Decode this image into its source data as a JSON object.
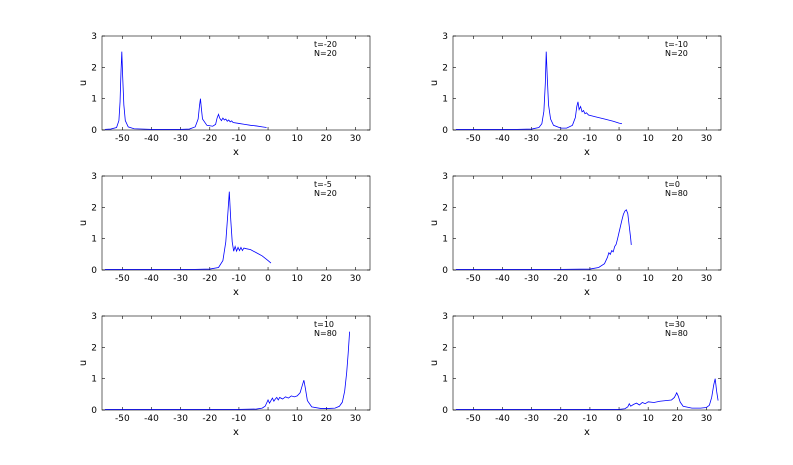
{
  "chart_data": [
    {
      "type": "line",
      "xlabel": "x",
      "ylabel": "u",
      "xlim": [
        -57,
        35
      ],
      "ylim": [
        0,
        3
      ],
      "xticks": [
        -50,
        -40,
        -30,
        -20,
        -10,
        0,
        10,
        20,
        30
      ],
      "yticks": [
        0,
        1,
        2,
        3
      ],
      "annotations": [
        "t=-20",
        "N=20"
      ],
      "series": [
        {
          "color": "#0000ff",
          "points": [
            [
              -56,
              0.02
            ],
            [
              -54,
              0.03
            ],
            [
              -52,
              0.08
            ],
            [
              -51.2,
              0.3
            ],
            [
              -50.8,
              0.9
            ],
            [
              -50.5,
              1.8
            ],
            [
              -50.2,
              2.5
            ],
            [
              -49.9,
              1.7
            ],
            [
              -49.5,
              0.8
            ],
            [
              -49,
              0.3
            ],
            [
              -48,
              0.1
            ],
            [
              -46,
              0.04
            ],
            [
              -40,
              0.02
            ],
            [
              -30,
              0.02
            ],
            [
              -27,
              0.03
            ],
            [
              -25,
              0.1
            ],
            [
              -24,
              0.35
            ],
            [
              -23.5,
              0.8
            ],
            [
              -23.2,
              1.0
            ],
            [
              -22.9,
              0.7
            ],
            [
              -22.5,
              0.35
            ],
            [
              -21,
              0.15
            ],
            [
              -19,
              0.12
            ],
            [
              -18,
              0.18
            ],
            [
              -17.5,
              0.38
            ],
            [
              -17,
              0.5
            ],
            [
              -16.6,
              0.38
            ],
            [
              -16,
              0.3
            ],
            [
              -15.5,
              0.38
            ],
            [
              -15,
              0.32
            ],
            [
              -14.5,
              0.35
            ],
            [
              -14,
              0.28
            ],
            [
              -13.5,
              0.32
            ],
            [
              -13,
              0.26
            ],
            [
              -12.5,
              0.29
            ],
            [
              -12,
              0.24
            ],
            [
              -10,
              0.21
            ],
            [
              -8,
              0.18
            ],
            [
              -6,
              0.15
            ],
            [
              -4,
              0.13
            ],
            [
              -2,
              0.1
            ],
            [
              -0.5,
              0.08
            ]
          ]
        }
      ]
    },
    {
      "type": "line",
      "xlabel": "x",
      "ylabel": "u",
      "xlim": [
        -57,
        35
      ],
      "ylim": [
        0,
        3
      ],
      "xticks": [
        -50,
        -40,
        -30,
        -20,
        -10,
        0,
        10,
        20,
        30
      ],
      "yticks": [
        0,
        1,
        2,
        3
      ],
      "annotations": [
        "t=-10",
        "N=20"
      ],
      "series": [
        {
          "color": "#0000ff",
          "points": [
            [
              -56,
              0.02
            ],
            [
              -45,
              0.02
            ],
            [
              -35,
              0.02
            ],
            [
              -30,
              0.03
            ],
            [
              -27.5,
              0.08
            ],
            [
              -26.5,
              0.2
            ],
            [
              -25.8,
              0.6
            ],
            [
              -25.3,
              1.5
            ],
            [
              -25,
              2.5
            ],
            [
              -24.6,
              1.6
            ],
            [
              -24.2,
              0.8
            ],
            [
              -23.5,
              0.35
            ],
            [
              -22.5,
              0.15
            ],
            [
              -20,
              0.06
            ],
            [
              -18,
              0.06
            ],
            [
              -16,
              0.15
            ],
            [
              -15,
              0.4
            ],
            [
              -14.5,
              0.75
            ],
            [
              -14.1,
              0.9
            ],
            [
              -13.7,
              0.65
            ],
            [
              -13.2,
              0.75
            ],
            [
              -12.7,
              0.58
            ],
            [
              -12.2,
              0.62
            ],
            [
              -11.7,
              0.52
            ],
            [
              -11.2,
              0.55
            ],
            [
              -10.5,
              0.48
            ],
            [
              -8,
              0.42
            ],
            [
              -5,
              0.35
            ],
            [
              -2,
              0.28
            ],
            [
              0,
              0.22
            ],
            [
              1,
              0.2
            ]
          ]
        }
      ]
    },
    {
      "type": "line",
      "xlabel": "x",
      "ylabel": "u",
      "xlim": [
        -57,
        35
      ],
      "ylim": [
        0,
        3
      ],
      "xticks": [
        -50,
        -40,
        -30,
        -20,
        -10,
        0,
        10,
        20,
        30
      ],
      "yticks": [
        0,
        1,
        2,
        3
      ],
      "annotations": [
        "t=-5",
        "N=20"
      ],
      "series": [
        {
          "color": "#0000ff",
          "points": [
            [
              -56,
              0.02
            ],
            [
              -40,
              0.02
            ],
            [
              -25,
              0.02
            ],
            [
              -20,
              0.03
            ],
            [
              -17,
              0.08
            ],
            [
              -15.5,
              0.3
            ],
            [
              -14.5,
              0.9
            ],
            [
              -13.8,
              1.8
            ],
            [
              -13.3,
              2.5
            ],
            [
              -12.8,
              1.6
            ],
            [
              -12.3,
              0.9
            ],
            [
              -11.8,
              0.6
            ],
            [
              -11.3,
              0.75
            ],
            [
              -10.8,
              0.6
            ],
            [
              -10.3,
              0.72
            ],
            [
              -9.8,
              0.62
            ],
            [
              -9.3,
              0.72
            ],
            [
              -8.8,
              0.62
            ],
            [
              -8.3,
              0.7
            ],
            [
              -7.5,
              0.68
            ],
            [
              -6,
              0.65
            ],
            [
              -4,
              0.55
            ],
            [
              -2,
              0.45
            ],
            [
              0,
              0.3
            ],
            [
              1,
              0.22
            ]
          ]
        }
      ]
    },
    {
      "type": "line",
      "xlabel": "x",
      "ylabel": "u",
      "xlim": [
        -57,
        35
      ],
      "ylim": [
        0,
        3
      ],
      "xticks": [
        -50,
        -40,
        -30,
        -20,
        -10,
        0,
        10,
        20,
        30
      ],
      "yticks": [
        0,
        1,
        2,
        3
      ],
      "annotations": [
        "t=0",
        "N=80"
      ],
      "series": [
        {
          "color": "#0000ff",
          "points": [
            [
              -56,
              0.02
            ],
            [
              -40,
              0.02
            ],
            [
              -20,
              0.02
            ],
            [
              -10,
              0.03
            ],
            [
              -7,
              0.08
            ],
            [
              -5,
              0.2
            ],
            [
              -4,
              0.4
            ],
            [
              -3.5,
              0.55
            ],
            [
              -3,
              0.5
            ],
            [
              -2.5,
              0.62
            ],
            [
              -2,
              0.58
            ],
            [
              -1.5,
              0.75
            ],
            [
              -1,
              0.82
            ],
            [
              -0.5,
              1.0
            ],
            [
              0,
              1.2
            ],
            [
              0.5,
              1.4
            ],
            [
              1,
              1.6
            ],
            [
              1.5,
              1.78
            ],
            [
              2,
              1.88
            ],
            [
              2.5,
              1.92
            ],
            [
              3,
              1.8
            ],
            [
              3.5,
              1.4
            ],
            [
              4,
              1.0
            ],
            [
              4.2,
              0.8
            ]
          ]
        }
      ]
    },
    {
      "type": "line",
      "xlabel": "x",
      "ylabel": "u",
      "xlim": [
        -57,
        35
      ],
      "ylim": [
        0,
        3
      ],
      "xticks": [
        -50,
        -40,
        -30,
        -20,
        -10,
        0,
        10,
        20,
        30
      ],
      "yticks": [
        0,
        1,
        2,
        3
      ],
      "annotations": [
        "t=10",
        "N=80"
      ],
      "series": [
        {
          "color": "#0000ff",
          "points": [
            [
              -56,
              0.02
            ],
            [
              -30,
              0.02
            ],
            [
              -10,
              0.02
            ],
            [
              -4,
              0.03
            ],
            [
              -2,
              0.06
            ],
            [
              -1,
              0.12
            ],
            [
              -0.5,
              0.22
            ],
            [
              0,
              0.32
            ],
            [
              0.5,
              0.22
            ],
            [
              1,
              0.3
            ],
            [
              1.5,
              0.38
            ],
            [
              2,
              0.28
            ],
            [
              2.5,
              0.35
            ],
            [
              3,
              0.4
            ],
            [
              3.5,
              0.32
            ],
            [
              4,
              0.4
            ],
            [
              5,
              0.35
            ],
            [
              6,
              0.42
            ],
            [
              7,
              0.38
            ],
            [
              8,
              0.45
            ],
            [
              9,
              0.42
            ],
            [
              10,
              0.45
            ],
            [
              11,
              0.55
            ],
            [
              11.8,
              0.8
            ],
            [
              12.3,
              0.95
            ],
            [
              12.8,
              0.7
            ],
            [
              13.5,
              0.3
            ],
            [
              15,
              0.1
            ],
            [
              18,
              0.05
            ],
            [
              21,
              0.05
            ],
            [
              23,
              0.06
            ],
            [
              24.5,
              0.12
            ],
            [
              25.5,
              0.25
            ],
            [
              26.3,
              0.6
            ],
            [
              27,
              1.2
            ],
            [
              27.5,
              1.8
            ],
            [
              28,
              2.5
            ]
          ]
        }
      ]
    },
    {
      "type": "line",
      "xlabel": "x",
      "ylabel": "u",
      "xlim": [
        -57,
        35
      ],
      "ylim": [
        0,
        3
      ],
      "xticks": [
        -50,
        -40,
        -30,
        -20,
        -10,
        0,
        10,
        20,
        30
      ],
      "yticks": [
        0,
        1,
        2,
        3
      ],
      "annotations": [
        "t=30",
        "N=80"
      ],
      "series": [
        {
          "color": "#0000ff",
          "points": [
            [
              -56,
              0.02
            ],
            [
              -20,
              0.02
            ],
            [
              0,
              0.02
            ],
            [
              2,
              0.04
            ],
            [
              3,
              0.1
            ],
            [
              3.5,
              0.2
            ],
            [
              4,
              0.12
            ],
            [
              5,
              0.18
            ],
            [
              6,
              0.22
            ],
            [
              7,
              0.16
            ],
            [
              8,
              0.24
            ],
            [
              9,
              0.2
            ],
            [
              10,
              0.26
            ],
            [
              12,
              0.24
            ],
            [
              14,
              0.28
            ],
            [
              16,
              0.3
            ],
            [
              18,
              0.32
            ],
            [
              19,
              0.4
            ],
            [
              19.8,
              0.55
            ],
            [
              20.3,
              0.45
            ],
            [
              21,
              0.25
            ],
            [
              22,
              0.12
            ],
            [
              25,
              0.06
            ],
            [
              28,
              0.06
            ],
            [
              30,
              0.08
            ],
            [
              31,
              0.15
            ],
            [
              31.8,
              0.4
            ],
            [
              32.5,
              0.8
            ],
            [
              33,
              1.0
            ],
            [
              33.5,
              0.6
            ],
            [
              34,
              0.3
            ]
          ]
        }
      ]
    }
  ]
}
